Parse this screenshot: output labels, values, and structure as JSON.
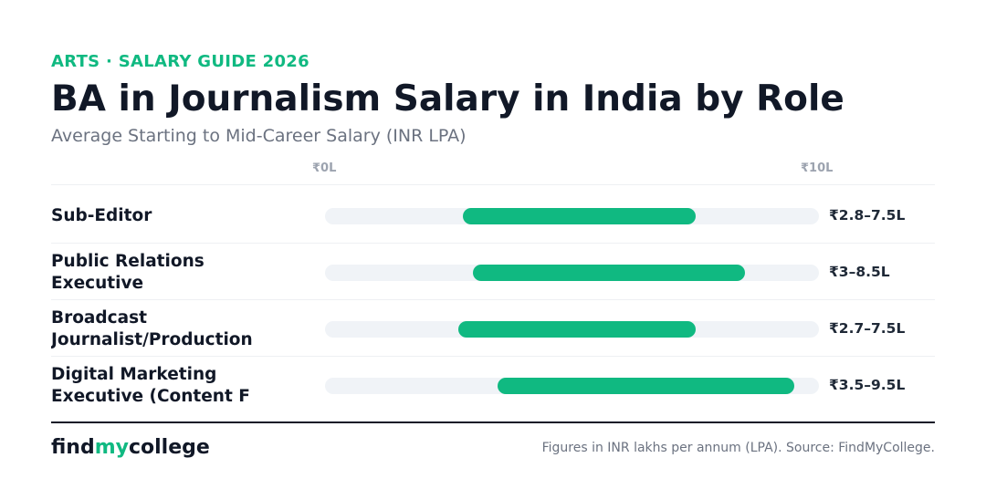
{
  "header": {
    "eyebrow": "ARTS · SALARY GUIDE 2026",
    "title": "BA in Journalism Salary in India by Role",
    "subtitle": "Average Starting to Mid-Career Salary (INR LPA)"
  },
  "colors": {
    "accent": "#10b981",
    "track": "#f0f3f7",
    "text": "#111827"
  },
  "chart_data": {
    "type": "bar",
    "subtype": "range-bar",
    "xlim": [
      0,
      10
    ],
    "axis_labels": {
      "min": "₹0L",
      "max": "₹10L"
    },
    "categories": [
      [
        "Sub-Editor"
      ],
      [
        "Public Relations",
        "Executive"
      ],
      [
        "Broadcast",
        "Journalist/Production"
      ],
      [
        "Digital Marketing",
        "Executive (Content F"
      ]
    ],
    "ranges": [
      {
        "low": 2.8,
        "high": 7.5,
        "label": "₹2.8–7.5L"
      },
      {
        "low": 3,
        "high": 8.5,
        "label": "₹3–8.5L"
      },
      {
        "low": 2.7,
        "high": 7.5,
        "label": "₹2.7–7.5L"
      },
      {
        "low": 3.5,
        "high": 9.5,
        "label": "₹3.5–9.5L"
      }
    ]
  },
  "footer": {
    "logo_prefix": "find",
    "logo_accent": "my",
    "logo_suffix": "college",
    "source": "Figures in INR lakhs per annum (LPA). Source: FindMyCollege."
  }
}
